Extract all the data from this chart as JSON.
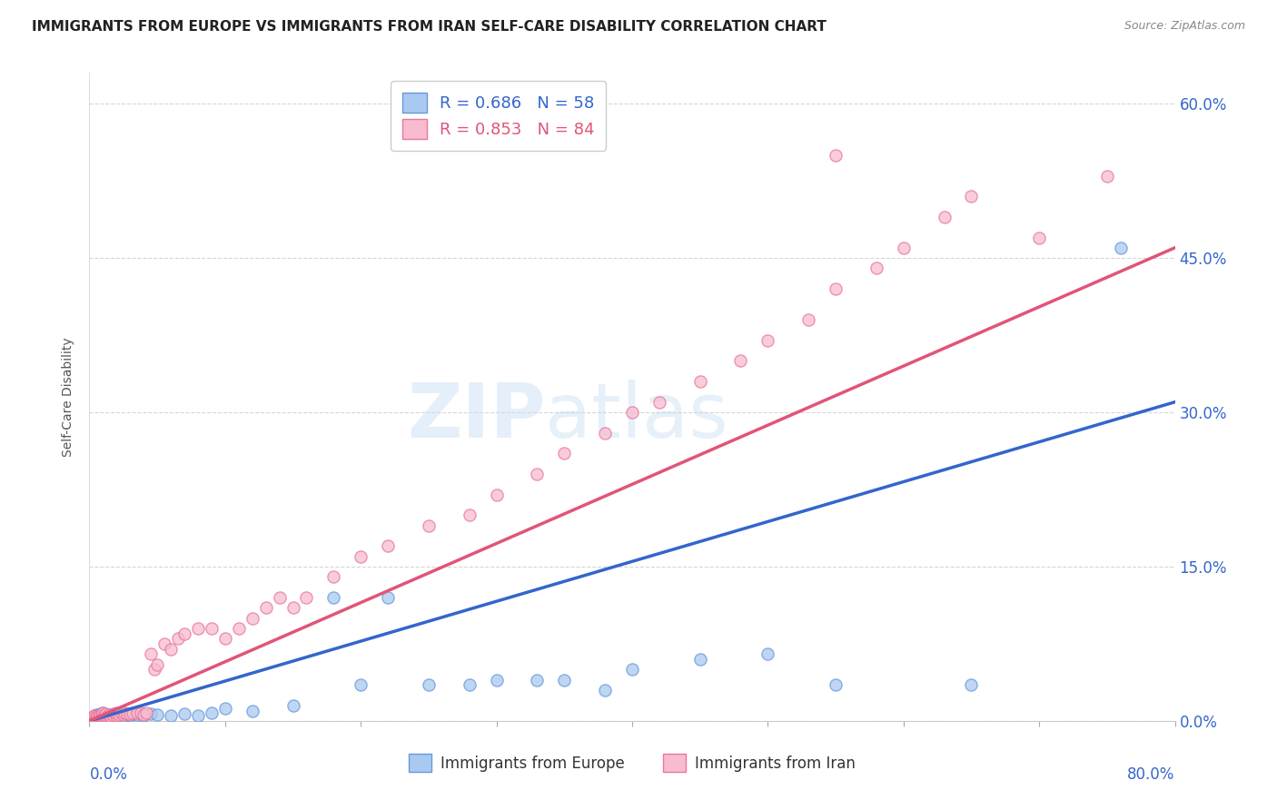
{
  "title": "IMMIGRANTS FROM EUROPE VS IMMIGRANTS FROM IRAN SELF-CARE DISABILITY CORRELATION CHART",
  "source": "Source: ZipAtlas.com",
  "ylabel": "Self-Care Disability",
  "xlim": [
    0.0,
    0.8
  ],
  "ylim": [
    0.0,
    0.63
  ],
  "yticks": [
    0.0,
    0.15,
    0.3,
    0.45,
    0.6
  ],
  "ytick_labels": [
    "0.0%",
    "15.0%",
    "30.0%",
    "45.0%",
    "60.0%"
  ],
  "xticks": [
    0.0,
    0.1,
    0.2,
    0.3,
    0.4,
    0.5,
    0.6,
    0.7,
    0.8
  ],
  "series_europe": {
    "color": "#aac9f0",
    "edge_color": "#6699dd",
    "line_color": "#3366cc",
    "R": 0.686,
    "N": 58,
    "label": "Immigrants from Europe"
  },
  "series_iran": {
    "color": "#f7bcd0",
    "edge_color": "#e87899",
    "line_color": "#e05577",
    "R": 0.853,
    "N": 84,
    "label": "Immigrants from Iran"
  },
  "background_color": "#ffffff",
  "grid_color": "#cccccc",
  "europe_x": [
    0.002,
    0.003,
    0.003,
    0.004,
    0.004,
    0.005,
    0.005,
    0.006,
    0.006,
    0.007,
    0.007,
    0.008,
    0.008,
    0.009,
    0.009,
    0.01,
    0.01,
    0.01,
    0.011,
    0.012,
    0.013,
    0.014,
    0.015,
    0.016,
    0.017,
    0.018,
    0.02,
    0.022,
    0.025,
    0.028,
    0.03,
    0.032,
    0.035,
    0.04,
    0.045,
    0.05,
    0.06,
    0.07,
    0.08,
    0.09,
    0.1,
    0.12,
    0.15,
    0.18,
    0.2,
    0.22,
    0.25,
    0.28,
    0.3,
    0.33,
    0.35,
    0.38,
    0.4,
    0.45,
    0.5,
    0.55,
    0.65,
    0.76
  ],
  "europe_y": [
    0.002,
    0.003,
    0.004,
    0.003,
    0.005,
    0.003,
    0.006,
    0.004,
    0.005,
    0.003,
    0.006,
    0.004,
    0.007,
    0.004,
    0.006,
    0.003,
    0.005,
    0.008,
    0.005,
    0.004,
    0.006,
    0.005,
    0.004,
    0.006,
    0.005,
    0.007,
    0.005,
    0.006,
    0.004,
    0.006,
    0.005,
    0.007,
    0.006,
    0.005,
    0.007,
    0.006,
    0.005,
    0.007,
    0.005,
    0.008,
    0.012,
    0.01,
    0.015,
    0.12,
    0.035,
    0.12,
    0.035,
    0.035,
    0.04,
    0.04,
    0.04,
    0.03,
    0.05,
    0.06,
    0.065,
    0.035,
    0.035,
    0.46
  ],
  "iran_x": [
    0.001,
    0.002,
    0.002,
    0.003,
    0.003,
    0.004,
    0.004,
    0.005,
    0.005,
    0.006,
    0.006,
    0.007,
    0.007,
    0.008,
    0.008,
    0.009,
    0.009,
    0.01,
    0.01,
    0.01,
    0.011,
    0.011,
    0.012,
    0.012,
    0.013,
    0.014,
    0.015,
    0.015,
    0.016,
    0.017,
    0.018,
    0.019,
    0.02,
    0.02,
    0.022,
    0.023,
    0.025,
    0.026,
    0.028,
    0.03,
    0.032,
    0.035,
    0.038,
    0.04,
    0.042,
    0.045,
    0.048,
    0.05,
    0.055,
    0.06,
    0.065,
    0.07,
    0.08,
    0.09,
    0.1,
    0.11,
    0.12,
    0.13,
    0.14,
    0.15,
    0.16,
    0.18,
    0.2,
    0.22,
    0.25,
    0.28,
    0.3,
    0.33,
    0.35,
    0.38,
    0.4,
    0.42,
    0.45,
    0.48,
    0.5,
    0.53,
    0.55,
    0.58,
    0.6,
    0.63,
    0.65,
    0.7,
    0.75,
    0.55
  ],
  "iran_y": [
    0.002,
    0.002,
    0.003,
    0.003,
    0.004,
    0.003,
    0.005,
    0.003,
    0.004,
    0.003,
    0.005,
    0.003,
    0.005,
    0.003,
    0.005,
    0.003,
    0.005,
    0.003,
    0.005,
    0.008,
    0.004,
    0.006,
    0.004,
    0.007,
    0.004,
    0.005,
    0.004,
    0.006,
    0.004,
    0.006,
    0.005,
    0.007,
    0.005,
    0.008,
    0.006,
    0.008,
    0.006,
    0.008,
    0.007,
    0.007,
    0.008,
    0.008,
    0.008,
    0.006,
    0.008,
    0.065,
    0.05,
    0.055,
    0.075,
    0.07,
    0.08,
    0.085,
    0.09,
    0.09,
    0.08,
    0.09,
    0.1,
    0.11,
    0.12,
    0.11,
    0.12,
    0.14,
    0.16,
    0.17,
    0.19,
    0.2,
    0.22,
    0.24,
    0.26,
    0.28,
    0.3,
    0.31,
    0.33,
    0.35,
    0.37,
    0.39,
    0.42,
    0.44,
    0.46,
    0.49,
    0.51,
    0.47,
    0.53,
    0.55
  ]
}
